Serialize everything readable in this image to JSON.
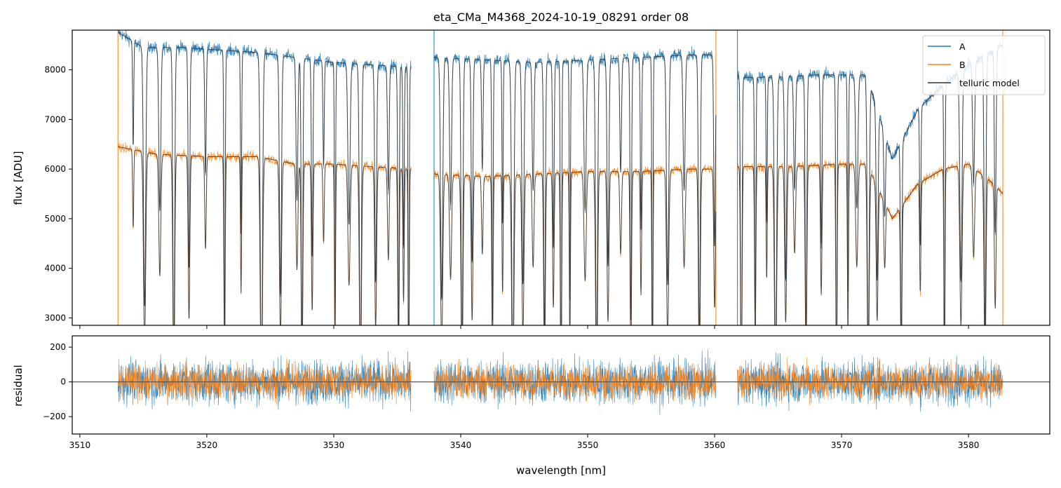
{
  "chart_data": [
    {
      "type": "line",
      "title": "eta_CMa_M4368_2024-10-19_08291  order 08",
      "xlabel": "",
      "ylabel": "flux [ADU]",
      "xlim": [
        3509.4,
        3586.4
      ],
      "ylim": [
        2850,
        8800
      ],
      "xticks": [
        3510,
        3520,
        3530,
        3540,
        3550,
        3560,
        3570,
        3580
      ],
      "yticks": [
        3000,
        4000,
        5000,
        6000,
        7000,
        8000
      ],
      "x_segments": [
        [
          3513.0,
          3536.1
        ],
        [
          3537.9,
          3560.1
        ],
        [
          3561.8,
          3582.7
        ]
      ],
      "legend": {
        "placement": "upper right",
        "entries": [
          "A",
          "B",
          "telluric model"
        ]
      },
      "series": [
        {
          "name": "A",
          "color": "#1f77b4",
          "continuum_profile": [
            [
              3513.0,
              8760
            ],
            [
              3515.0,
              8450
            ],
            [
              3518.0,
              8450
            ],
            [
              3521.0,
              8400
            ],
            [
              3524.0,
              8350
            ],
            [
              3527.0,
              8250
            ],
            [
              3530.0,
              8150
            ],
            [
              3533.0,
              8100
            ],
            [
              3536.0,
              8050
            ],
            [
              3538.0,
              8250
            ],
            [
              3542.0,
              8200
            ],
            [
              3546.0,
              8150
            ],
            [
              3550.0,
              8200
            ],
            [
              3554.0,
              8250
            ],
            [
              3558.0,
              8300
            ],
            [
              3560.0,
              8300
            ],
            [
              3562.0,
              7850
            ],
            [
              3565.0,
              7850
            ],
            [
              3568.0,
              7900
            ],
            [
              3572.0,
              7900
            ],
            [
              3574.0,
              6200
            ],
            [
              3576.0,
              7200
            ],
            [
              3578.0,
              7700
            ],
            [
              3580.0,
              8100
            ],
            [
              3582.0,
              8400
            ],
            [
              3582.7,
              8500
            ]
          ]
        },
        {
          "name": "B",
          "color": "#ff7f0e",
          "continuum_profile": [
            [
              3513.0,
              6450
            ],
            [
              3516.0,
              6300
            ],
            [
              3520.0,
              6250
            ],
            [
              3524.0,
              6250
            ],
            [
              3527.0,
              6100
            ],
            [
              3530.0,
              6100
            ],
            [
              3533.0,
              6050
            ],
            [
              3536.0,
              6000
            ],
            [
              3538.0,
              5900
            ],
            [
              3542.0,
              5850
            ],
            [
              3546.0,
              5900
            ],
            [
              3550.0,
              5950
            ],
            [
              3554.0,
              5950
            ],
            [
              3558.0,
              6000
            ],
            [
              3560.0,
              6000
            ],
            [
              3562.0,
              6050
            ],
            [
              3566.0,
              6050
            ],
            [
              3570.0,
              6100
            ],
            [
              3572.0,
              6100
            ],
            [
              3574.0,
              5000
            ],
            [
              3576.0,
              5700
            ],
            [
              3578.0,
              6000
            ],
            [
              3580.0,
              6100
            ],
            [
              3582.0,
              5700
            ],
            [
              3582.7,
              5500
            ]
          ]
        },
        {
          "name": "telluric model",
          "color": "#333333"
        }
      ],
      "absorption_lines_nm": [
        3514.2,
        3515.1,
        3516.3,
        3517.4,
        3518.6,
        3519.9,
        3521.4,
        3522.7,
        3524.3,
        3525.8,
        3527.1,
        3527.5,
        3528.3,
        3529.2,
        3530.1,
        3531.2,
        3532.1,
        3533.3,
        3534.3,
        3535.1,
        3535.5,
        3535.9,
        3538.5,
        3539.2,
        3540.1,
        3540.9,
        3541.7,
        3542.5,
        3543.3,
        3544.1,
        3544.9,
        3545.7,
        3546.6,
        3547.3,
        3547.9,
        3548.6,
        3549.8,
        3550.7,
        3551.6,
        3552.6,
        3553.4,
        3554.2,
        3555.1,
        3556.3,
        3557.6,
        3558.8,
        3560.0,
        3562.1,
        3563.2,
        3564.1,
        3564.8,
        3565.6,
        3566.3,
        3567.2,
        3568.4,
        3569.6,
        3570.5,
        3571.2,
        3572.1,
        3572.8,
        3573.4,
        3574.7,
        3576.2,
        3578.1,
        3579.4,
        3580.4,
        3581.3,
        3582.1
      ],
      "spike_lines_nm": [
        3513.0,
        3537.9,
        3560.1,
        3561.8,
        3582.7
      ]
    },
    {
      "type": "line",
      "title": "",
      "xlabel": "wavelength [nm]",
      "ylabel": "residual",
      "xlim": [
        3509.4,
        3586.4
      ],
      "ylim": [
        -300,
        265
      ],
      "xticks": [
        3510,
        3520,
        3530,
        3540,
        3550,
        3560,
        3570,
        3580
      ],
      "yticks": [
        -200,
        0,
        200
      ],
      "zero_line": 0,
      "x_segments": [
        [
          3513.0,
          3536.1
        ],
        [
          3537.9,
          3560.1
        ],
        [
          3561.8,
          3582.7
        ]
      ],
      "series": [
        {
          "name": "A",
          "color": "#1f77b4",
          "noise_amplitude": 120
        },
        {
          "name": "B",
          "color": "#ff7f0e",
          "noise_amplitude": 95
        }
      ]
    }
  ]
}
